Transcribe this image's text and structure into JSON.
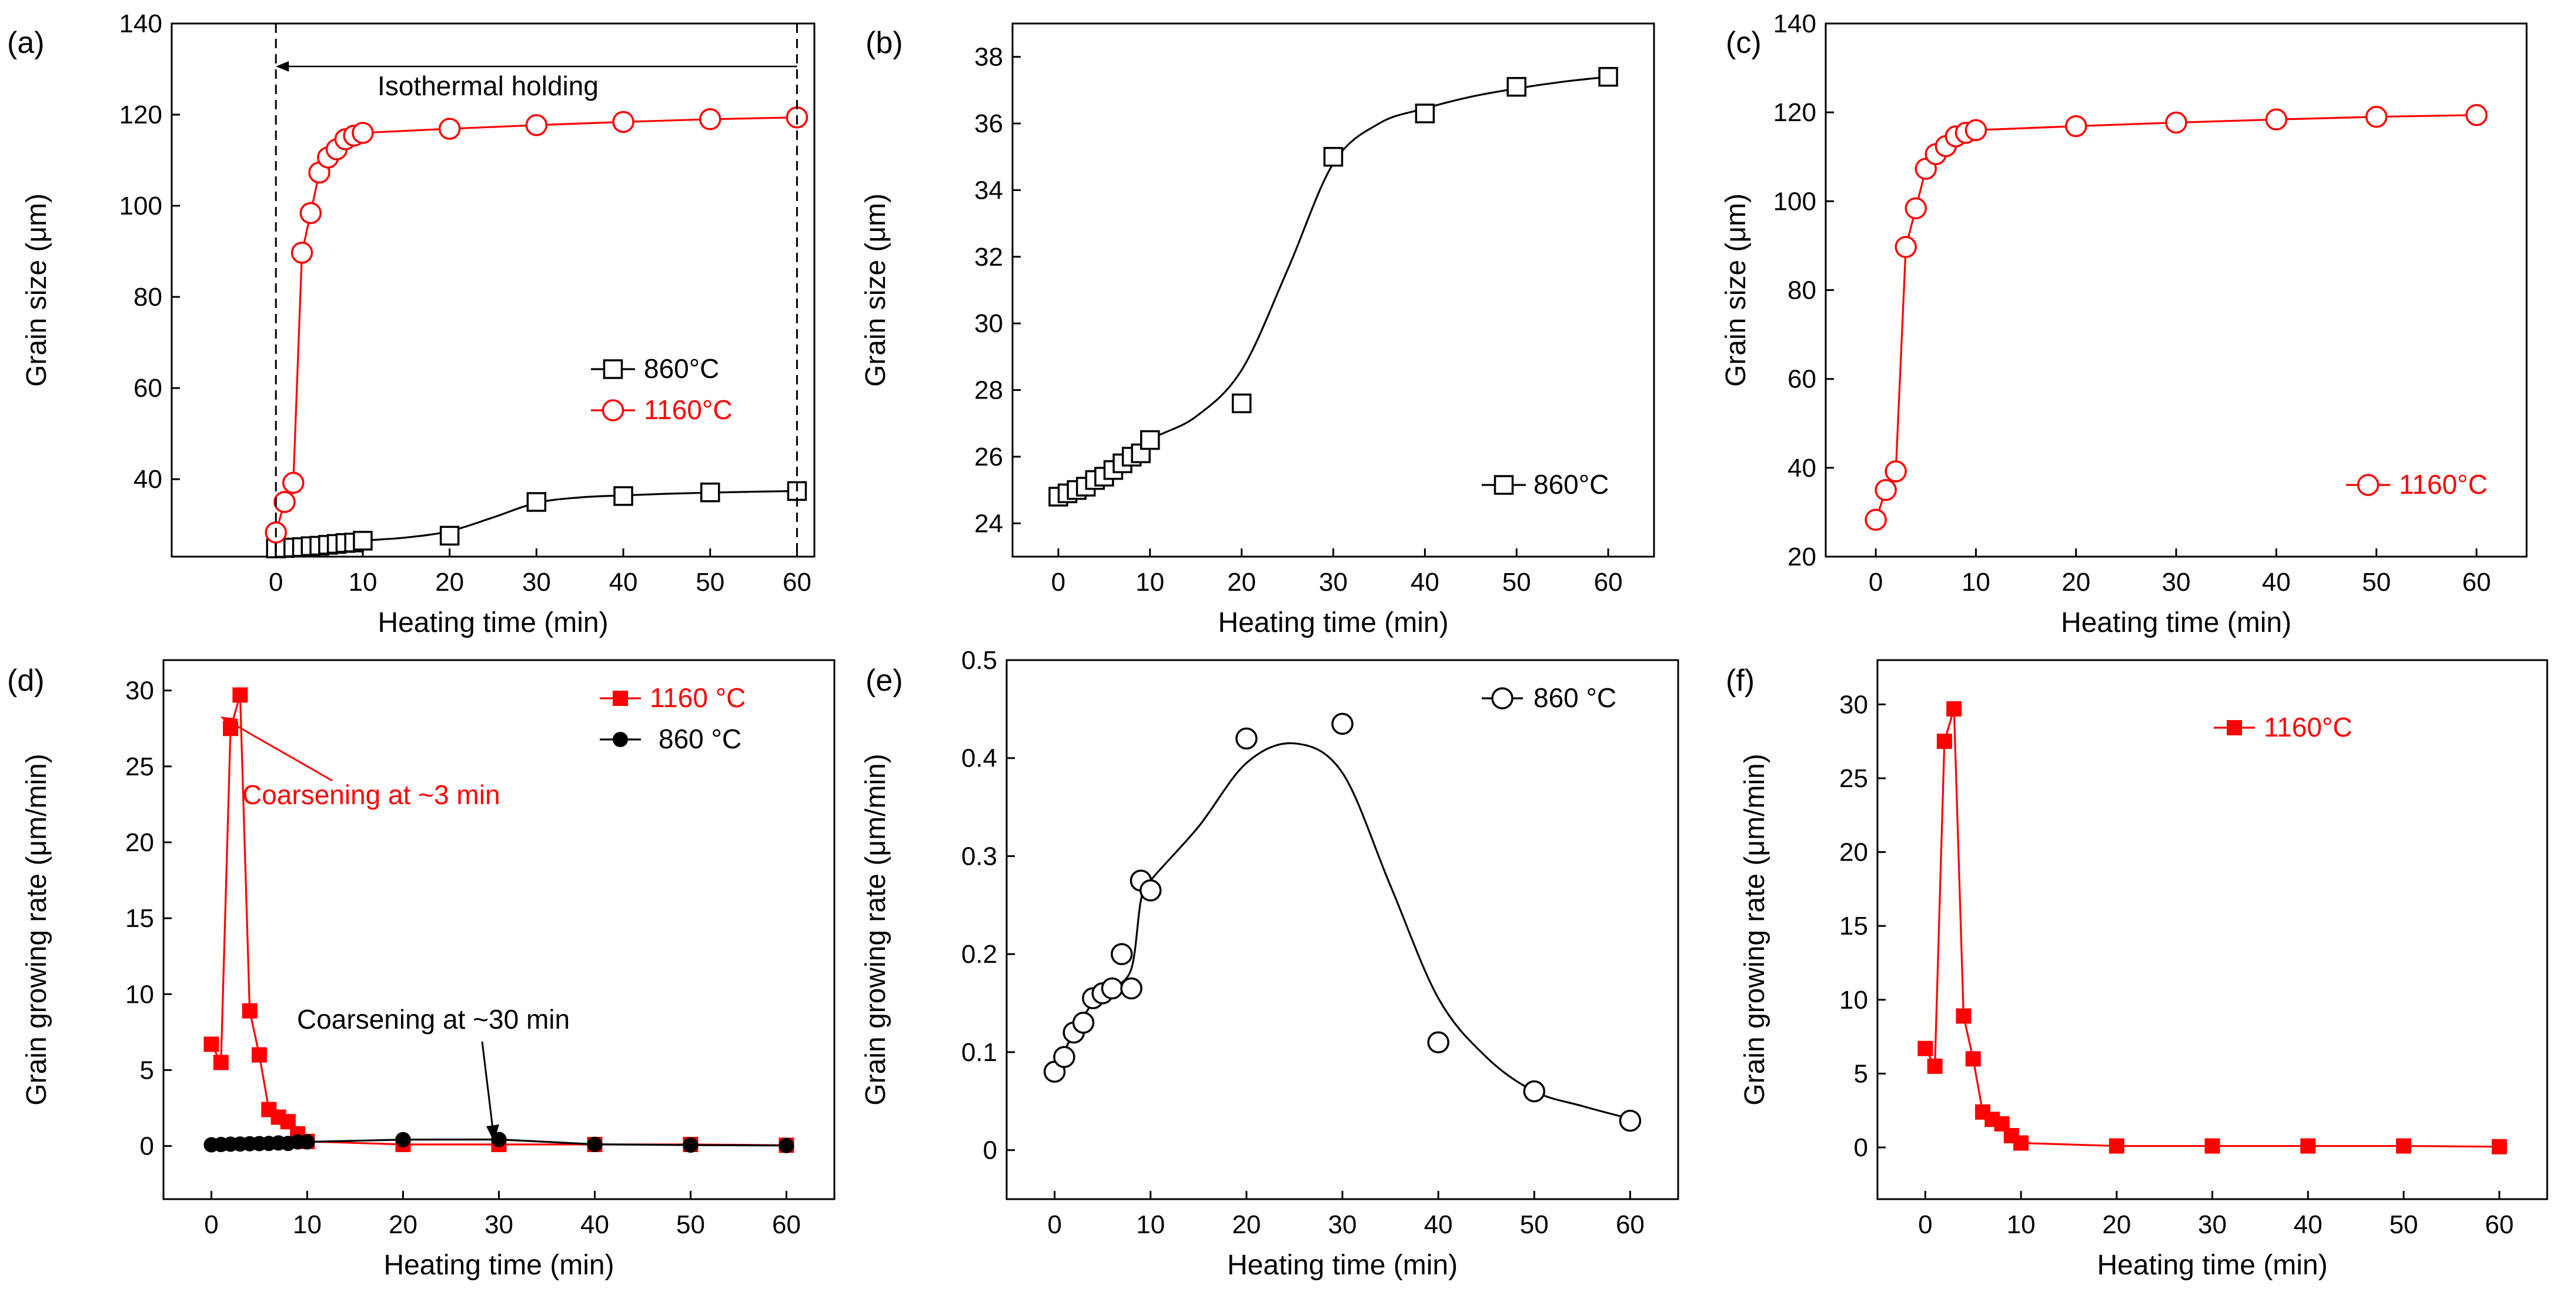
{
  "colors": {
    "black": "#000000",
    "red": "#ff0000"
  },
  "chart_data": [
    {
      "type": "line",
      "panel_label": "(a)",
      "xlabel": "Heating time (min)",
      "ylabel": "Grain size (μm)",
      "xlim": [
        -12,
        62
      ],
      "ylim": [
        23,
        140
      ],
      "xticks": [
        0,
        10,
        20,
        30,
        40,
        50,
        60
      ],
      "yticks": [
        40,
        60,
        80,
        100,
        120,
        140
      ],
      "legend": "center-right",
      "series": [
        {
          "name": "860°C",
          "color": "#000000",
          "marker": "open-square",
          "x": [
            0,
            1,
            2,
            3,
            4,
            5,
            6,
            7,
            8,
            9,
            10,
            20,
            30,
            40,
            50,
            60
          ],
          "y": [
            24.8,
            24.9,
            25.0,
            25.1,
            25.3,
            25.4,
            25.6,
            25.8,
            26.0,
            26.1,
            26.5,
            27.6,
            35.0,
            36.3,
            37.1,
            37.4
          ]
        },
        {
          "name": "1160°C",
          "color": "#ff0000",
          "marker": "open-circle",
          "x": [
            0,
            1,
            2,
            3,
            4,
            5,
            6,
            7,
            8,
            9,
            10,
            20,
            30,
            40,
            50,
            60
          ],
          "y": [
            28.3,
            35.0,
            39.2,
            89.7,
            98.4,
            107.3,
            110.6,
            112.4,
            114.6,
            115.4,
            116.0,
            116.9,
            117.7,
            118.4,
            119.0,
            119.4
          ]
        }
      ],
      "annotations": [
        {
          "text": "Isothermal holding"
        }
      ]
    },
    {
      "type": "line",
      "panel_label": "(b)",
      "xlabel": "Heating time (min)",
      "ylabel": "Grain size (μm)",
      "xlim": [
        -5,
        65
      ],
      "ylim": [
        23,
        39
      ],
      "xticks": [
        0,
        10,
        20,
        30,
        40,
        50,
        60
      ],
      "yticks": [
        24,
        26,
        28,
        30,
        32,
        34,
        36,
        38
      ],
      "legend": "bottom-right",
      "series": [
        {
          "name": "860°C",
          "color": "#000000",
          "marker": "open-square",
          "x": [
            0,
            1,
            2,
            3,
            4,
            5,
            6,
            7,
            8,
            9,
            10,
            20,
            30,
            40,
            50,
            60
          ],
          "y": [
            24.8,
            24.9,
            25.0,
            25.1,
            25.3,
            25.4,
            25.6,
            25.8,
            26.0,
            26.1,
            26.5,
            27.6,
            35.0,
            36.3,
            37.1,
            37.4
          ]
        }
      ]
    },
    {
      "type": "line",
      "panel_label": "(c)",
      "xlabel": "Heating time (min)",
      "ylabel": "Grain size (μm)",
      "xlim": [
        -5,
        65
      ],
      "ylim": [
        20,
        140
      ],
      "xticks": [
        0,
        10,
        20,
        30,
        40,
        50,
        60
      ],
      "yticks": [
        20,
        40,
        60,
        80,
        100,
        120,
        140
      ],
      "legend": "bottom-right",
      "series": [
        {
          "name": "1160°C",
          "color": "#ff0000",
          "marker": "open-circle",
          "x": [
            0,
            1,
            2,
            3,
            4,
            5,
            6,
            7,
            8,
            9,
            10,
            20,
            30,
            40,
            50,
            60
          ],
          "y": [
            28.3,
            35.0,
            39.2,
            89.7,
            98.4,
            107.3,
            110.6,
            112.4,
            114.6,
            115.4,
            116.0,
            116.9,
            117.7,
            118.4,
            119.0,
            119.4
          ]
        }
      ]
    },
    {
      "type": "line",
      "panel_label": "(d)",
      "xlabel": "Heating time (min)",
      "ylabel": "Grain growing rate (μm/min)",
      "xlim": [
        -5,
        65
      ],
      "ylim": [
        -3.5,
        32
      ],
      "xticks": [
        0,
        10,
        20,
        30,
        40,
        50,
        60
      ],
      "yticks": [
        0,
        5,
        10,
        15,
        20,
        25,
        30
      ],
      "legend": "top-right",
      "series": [
        {
          "name": "1160 °C",
          "color": "#ff0000",
          "marker": "filled-square",
          "x": [
            0,
            1,
            2,
            3,
            4,
            5,
            6,
            7,
            8,
            9,
            10,
            20,
            30,
            40,
            50,
            60
          ],
          "y": [
            6.7,
            5.5,
            27.5,
            29.7,
            8.9,
            6.0,
            2.4,
            1.9,
            1.6,
            0.8,
            0.3,
            0.1,
            0.1,
            0.1,
            0.1,
            0.05
          ]
        },
        {
          "name": "860  °C",
          "color": "#000000",
          "marker": "filled-circle",
          "x": [
            0,
            1,
            2,
            3,
            4,
            5,
            6,
            7,
            8,
            9,
            10,
            20,
            30,
            40,
            50,
            60
          ],
          "y": [
            0.08,
            0.1,
            0.12,
            0.13,
            0.15,
            0.16,
            0.17,
            0.2,
            0.17,
            0.27,
            0.27,
            0.42,
            0.43,
            0.11,
            0.06,
            0.03
          ]
        }
      ],
      "annotations": [
        {
          "text": "Coarsening at ~3 min"
        },
        {
          "text": "Coarsening at ~30 min"
        }
      ]
    },
    {
      "type": "line",
      "panel_label": "(e)",
      "xlabel": "Heating time (min)",
      "ylabel": "Grain growing rate (μm/min)",
      "xlim": [
        -5,
        65
      ],
      "ylim": [
        -0.05,
        0.5
      ],
      "xticks": [
        0,
        10,
        20,
        30,
        40,
        50,
        60
      ],
      "yticks": [
        0.0,
        0.1,
        0.2,
        0.3,
        0.4,
        0.5
      ],
      "legend": "top-right",
      "series": [
        {
          "name": "860 °C",
          "color": "#000000",
          "marker": "open-circle",
          "x": [
            0,
            1,
            2,
            3,
            4,
            5,
            6,
            7,
            8,
            9,
            10,
            20,
            30,
            40,
            50,
            60
          ],
          "y": [
            0.08,
            0.095,
            0.12,
            0.13,
            0.155,
            0.16,
            0.165,
            0.2,
            0.165,
            0.275,
            0.265,
            0.42,
            0.435,
            0.11,
            0.06,
            0.03
          ]
        }
      ]
    },
    {
      "type": "line",
      "panel_label": "(f)",
      "xlabel": "Heating time (min)",
      "ylabel": "Grain growing rate (μm/min)",
      "xlim": [
        -5,
        65
      ],
      "ylim": [
        -3.5,
        33
      ],
      "xticks": [
        0,
        10,
        20,
        30,
        40,
        50,
        60
      ],
      "yticks": [
        0,
        5,
        10,
        15,
        20,
        25,
        30
      ],
      "legend": "top-right",
      "series": [
        {
          "name": "1160°C",
          "color": "#ff0000",
          "marker": "filled-square",
          "x": [
            0,
            1,
            2,
            3,
            4,
            5,
            6,
            7,
            8,
            9,
            10,
            20,
            30,
            40,
            50,
            60
          ],
          "y": [
            6.7,
            5.5,
            27.5,
            29.7,
            8.9,
            6.0,
            2.4,
            1.9,
            1.6,
            0.8,
            0.3,
            0.1,
            0.1,
            0.1,
            0.1,
            0.05
          ]
        }
      ]
    }
  ]
}
